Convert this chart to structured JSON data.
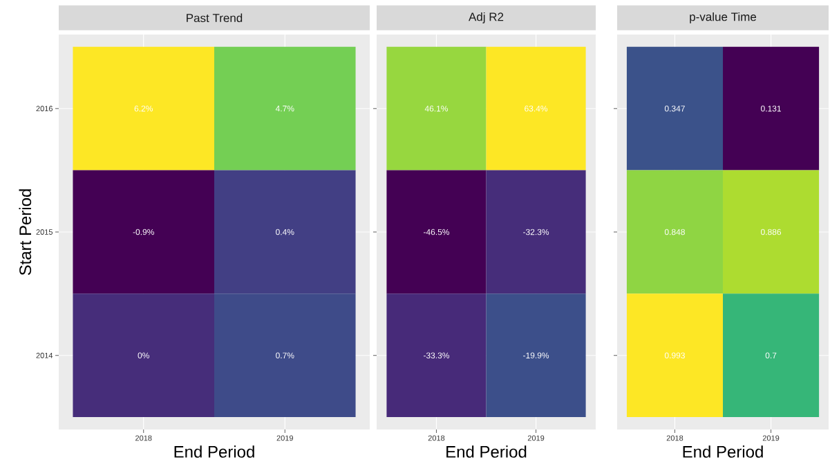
{
  "chart_data": [
    {
      "type": "heatmap",
      "title": "Past Trend",
      "xlabel": "End Period",
      "ylabel": "Start Period",
      "categories": [
        "2018",
        "2019"
      ],
      "y_categories": [
        "2016",
        "2015",
        "2014"
      ],
      "cells": [
        [
          6.2,
          4.7
        ],
        [
          -0.9,
          0.4
        ],
        [
          0,
          0.7
        ]
      ],
      "cell_labels": [
        [
          "6.2%",
          "4.7%"
        ],
        [
          "-0.9%",
          "0.4%"
        ],
        [
          "0%",
          "0.7%"
        ]
      ],
      "grid": true
    },
    {
      "type": "heatmap",
      "title": "Adj R2",
      "xlabel": "End Period",
      "categories": [
        "2018",
        "2019"
      ],
      "y_categories": [
        "2016",
        "2015",
        "2014"
      ],
      "cells": [
        [
          46.1,
          63.4
        ],
        [
          -46.5,
          -32.3
        ],
        [
          -33.3,
          -19.9
        ]
      ],
      "cell_labels": [
        [
          "46.1%",
          "63.4%"
        ],
        [
          "-46.5%",
          "-32.3%"
        ],
        [
          "-33.3%",
          "-19.9%"
        ]
      ],
      "grid": true,
      "tick_labels": "x"
    },
    {
      "type": "heatmap",
      "title": "p-value Time",
      "xlabel": "End Period",
      "categories": [
        "2018",
        "2019"
      ],
      "y_categories": [
        "2016",
        "2015",
        "2014"
      ],
      "cells": [
        [
          0.347,
          0.131
        ],
        [
          0.848,
          0.886
        ],
        [
          0.993,
          0.7
        ]
      ],
      "data_labels": true,
      "grid": true,
      "tick_labels": "x"
    }
  ]
}
